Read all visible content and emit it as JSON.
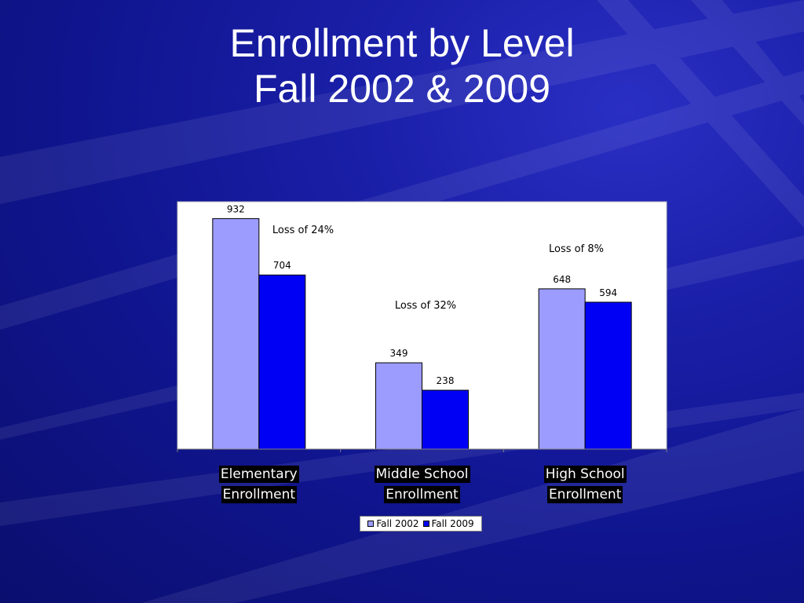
{
  "slide": {
    "title_line1": "Enrollment by Level",
    "title_line2": "Fall 2002 & 2009"
  },
  "colors": {
    "fall_2002": "#9c9cff",
    "fall_2009": "#0000f5",
    "plot_bg": "#ffffff"
  },
  "chart_data": {
    "type": "bar",
    "categories": [
      [
        "Elementary",
        "Enrollment"
      ],
      [
        "Middle School",
        "Enrollment"
      ],
      [
        "High School",
        "Enrollment"
      ]
    ],
    "series": [
      {
        "name": "Fall 2002",
        "values": [
          932,
          349,
          648
        ]
      },
      {
        "name": "Fall 2009",
        "values": [
          704,
          238,
          594
        ]
      }
    ],
    "annotations": [
      "Loss of 24%",
      "Loss of 32%",
      "Loss of 8%"
    ],
    "ylim": [
      0,
      1000
    ],
    "grid": false,
    "legend_position": "bottom"
  }
}
